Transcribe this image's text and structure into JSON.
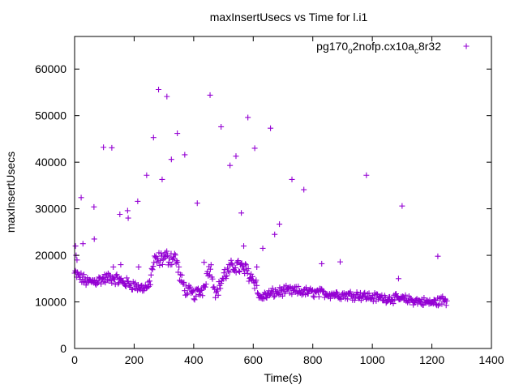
{
  "chart_data": {
    "type": "scatter",
    "title": "maxInsertUsecs vs Time for l.i1",
    "xlabel": "Time(s)",
    "ylabel": "maxInsertUsecs",
    "xlim": [
      0,
      1400
    ],
    "ylim": [
      0,
      67000
    ],
    "x_ticks": [
      "0",
      "200",
      "400",
      "600",
      "800",
      "1000",
      "1200",
      "1400"
    ],
    "y_ticks": [
      "0",
      "10000",
      "20000",
      "30000",
      "40000",
      "50000",
      "60000"
    ],
    "grid": false,
    "legend_position": "top-right",
    "series": [
      {
        "name": "pg170_o2nofp.cx10a_c8r32",
        "legend_parts": [
          "pg170",
          "o",
          "2nofp.cx10a",
          "c",
          "8r32"
        ],
        "color": "#9400d3",
        "marker": "plus",
        "band": [
          [
            0,
            16000,
            2400
          ],
          [
            20,
            15200,
            2000
          ],
          [
            45,
            14200,
            2000
          ],
          [
            70,
            14500,
            2200
          ],
          [
            100,
            15000,
            2000
          ],
          [
            130,
            15200,
            2200
          ],
          [
            160,
            14300,
            2000
          ],
          [
            190,
            13800,
            2000
          ],
          [
            220,
            13000,
            1800
          ],
          [
            250,
            13200,
            1800
          ],
          [
            265,
            18500,
            3000
          ],
          [
            300,
            19500,
            3000
          ],
          [
            340,
            19500,
            3000
          ],
          [
            355,
            15000,
            2600
          ],
          [
            375,
            12500,
            2400
          ],
          [
            400,
            11500,
            2200
          ],
          [
            430,
            12500,
            2200
          ],
          [
            455,
            18000,
            3000
          ],
          [
            475,
            11500,
            2000
          ],
          [
            500,
            15500,
            3000
          ],
          [
            540,
            18000,
            3000
          ],
          [
            580,
            16500,
            3000
          ],
          [
            610,
            14000,
            2600
          ],
          [
            620,
            10800,
            1600
          ],
          [
            660,
            11800,
            1800
          ],
          [
            700,
            12300,
            1800
          ],
          [
            750,
            12300,
            1800
          ],
          [
            800,
            12000,
            1700
          ],
          [
            850,
            11800,
            1700
          ],
          [
            900,
            11500,
            1700
          ],
          [
            950,
            11500,
            1700
          ],
          [
            1000,
            11000,
            1700
          ],
          [
            1050,
            10800,
            1600
          ],
          [
            1100,
            10600,
            1600
          ],
          [
            1150,
            10200,
            1600
          ],
          [
            1200,
            9800,
            1500
          ],
          [
            1250,
            10500,
            2200
          ]
        ],
        "x_range": [
          0,
          1252
        ],
        "x_step": 2.4,
        "outliers": [
          [
            3,
            22000
          ],
          [
            5,
            20000
          ],
          [
            8,
            19000
          ],
          [
            22,
            32400
          ],
          [
            28,
            22500
          ],
          [
            65,
            30400
          ],
          [
            66,
            23500
          ],
          [
            97,
            43200
          ],
          [
            125,
            43100
          ],
          [
            130,
            17500
          ],
          [
            152,
            28800
          ],
          [
            155,
            18000
          ],
          [
            178,
            29600
          ],
          [
            180,
            28000
          ],
          [
            212,
            31600
          ],
          [
            215,
            17500
          ],
          [
            242,
            37200
          ],
          [
            265,
            45300
          ],
          [
            282,
            55600
          ],
          [
            294,
            36300
          ],
          [
            310,
            54100
          ],
          [
            325,
            40600
          ],
          [
            345,
            46200
          ],
          [
            370,
            41600
          ],
          [
            412,
            31200
          ],
          [
            435,
            18500
          ],
          [
            455,
            54400
          ],
          [
            492,
            47600
          ],
          [
            522,
            39300
          ],
          [
            542,
            41300
          ],
          [
            560,
            29100
          ],
          [
            568,
            22000
          ],
          [
            582,
            49600
          ],
          [
            605,
            43000
          ],
          [
            612,
            17500
          ],
          [
            632,
            21500
          ],
          [
            658,
            47300
          ],
          [
            672,
            24500
          ],
          [
            688,
            26700
          ],
          [
            730,
            36300
          ],
          [
            770,
            34100
          ],
          [
            830,
            18200
          ],
          [
            892,
            18600
          ],
          [
            980,
            37200
          ],
          [
            1088,
            15000
          ],
          [
            1100,
            30600
          ],
          [
            1220,
            19800
          ]
        ]
      }
    ]
  }
}
